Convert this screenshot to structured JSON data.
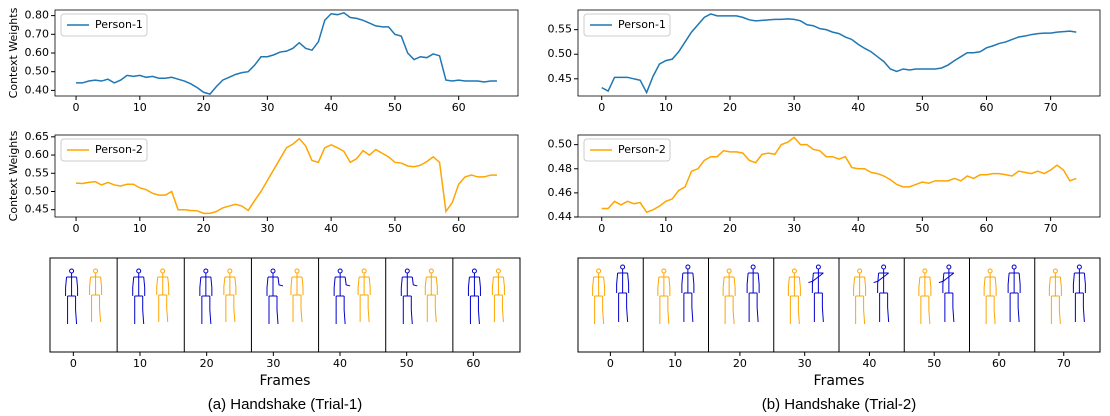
{
  "chart_data": [
    {
      "type": "line",
      "ylabel": "Context Weights",
      "legend": "upper left",
      "x": [
        0,
        1,
        2,
        3,
        4,
        5,
        6,
        7,
        8,
        9,
        10,
        11,
        12,
        13,
        14,
        15,
        16,
        17,
        18,
        19,
        20,
        21,
        22,
        23,
        24,
        25,
        26,
        27,
        28,
        29,
        30,
        31,
        32,
        33,
        34,
        35,
        36,
        37,
        38,
        39,
        40,
        41,
        42,
        43,
        44,
        45,
        46,
        47,
        48,
        49,
        50,
        51,
        52,
        53,
        54,
        55,
        56,
        57,
        58,
        59,
        60,
        61,
        62,
        63,
        64,
        65,
        66
      ],
      "series": [
        {
          "name": "Person-1",
          "color": "#1f77b4",
          "values": [
            0.44,
            0.44,
            0.45,
            0.455,
            0.45,
            0.46,
            0.44,
            0.455,
            0.48,
            0.475,
            0.48,
            0.47,
            0.475,
            0.465,
            0.465,
            0.47,
            0.46,
            0.45,
            0.435,
            0.415,
            0.39,
            0.38,
            0.42,
            0.455,
            0.47,
            0.485,
            0.495,
            0.5,
            0.535,
            0.58,
            0.58,
            0.59,
            0.605,
            0.61,
            0.625,
            0.655,
            0.625,
            0.615,
            0.66,
            0.775,
            0.81,
            0.805,
            0.815,
            0.79,
            0.785,
            0.775,
            0.76,
            0.745,
            0.74,
            0.74,
            0.7,
            0.69,
            0.6,
            0.565,
            0.58,
            0.575,
            0.595,
            0.585,
            0.455,
            0.45,
            0.455,
            0.45,
            0.45,
            0.45,
            0.445,
            0.45,
            0.45
          ]
        }
      ],
      "xlim": [
        -3.3,
        69.3
      ],
      "ylim": [
        0.37,
        0.83
      ],
      "xticks": [
        0,
        10,
        20,
        30,
        40,
        50,
        60
      ],
      "yticks": [
        {
          "value": 0.4,
          "label": "0.40"
        },
        {
          "value": 0.5,
          "label": "0.50"
        },
        {
          "value": 0.6,
          "label": "0.60"
        },
        {
          "value": 0.7,
          "label": "0.70"
        },
        {
          "value": 0.8,
          "label": "0.80"
        }
      ]
    },
    {
      "type": "line",
      "ylabel": "Context Weights",
      "legend": "upper left",
      "x": [
        0,
        1,
        2,
        3,
        4,
        5,
        6,
        7,
        8,
        9,
        10,
        11,
        12,
        13,
        14,
        15,
        16,
        17,
        18,
        19,
        20,
        21,
        22,
        23,
        24,
        25,
        26,
        27,
        28,
        29,
        30,
        31,
        32,
        33,
        34,
        35,
        36,
        37,
        38,
        39,
        40,
        41,
        42,
        43,
        44,
        45,
        46,
        47,
        48,
        49,
        50,
        51,
        52,
        53,
        54,
        55,
        56,
        57,
        58,
        59,
        60,
        61,
        62,
        63,
        64,
        65,
        66
      ],
      "series": [
        {
          "name": "Person-2",
          "color": "#ffa500",
          "values": [
            0.523,
            0.522,
            0.525,
            0.527,
            0.518,
            0.525,
            0.518,
            0.515,
            0.52,
            0.52,
            0.51,
            0.505,
            0.495,
            0.49,
            0.49,
            0.5,
            0.45,
            0.45,
            0.448,
            0.447,
            0.44,
            0.44,
            0.445,
            0.455,
            0.46,
            0.465,
            0.46,
            0.448,
            0.475,
            0.5,
            0.53,
            0.56,
            0.59,
            0.62,
            0.63,
            0.645,
            0.625,
            0.585,
            0.58,
            0.62,
            0.628,
            0.62,
            0.61,
            0.58,
            0.59,
            0.612,
            0.6,
            0.615,
            0.605,
            0.595,
            0.58,
            0.578,
            0.57,
            0.568,
            0.572,
            0.582,
            0.595,
            0.58,
            0.445,
            0.47,
            0.52,
            0.54,
            0.545,
            0.54,
            0.54,
            0.545,
            0.545
          ]
        }
      ],
      "xlim": [
        -3.3,
        69.3
      ],
      "ylim": [
        0.43,
        0.655
      ],
      "xticks": [
        0,
        10,
        20,
        30,
        40,
        50,
        60
      ],
      "yticks": [
        {
          "value": 0.45,
          "label": "0.45"
        },
        {
          "value": 0.5,
          "label": "0.50"
        },
        {
          "value": 0.55,
          "label": "0.55"
        },
        {
          "value": 0.6,
          "label": "0.60"
        },
        {
          "value": 0.65,
          "label": "0.65"
        }
      ]
    },
    {
      "type": "line",
      "legend": "upper left",
      "x": [
        0,
        1,
        2,
        3,
        4,
        5,
        6,
        7,
        8,
        9,
        10,
        11,
        12,
        13,
        14,
        15,
        16,
        17,
        18,
        19,
        20,
        21,
        22,
        23,
        24,
        25,
        26,
        27,
        28,
        29,
        30,
        31,
        32,
        33,
        34,
        35,
        36,
        37,
        38,
        39,
        40,
        41,
        42,
        43,
        44,
        45,
        46,
        47,
        48,
        49,
        50,
        51,
        52,
        53,
        54,
        55,
        56,
        57,
        58,
        59,
        60,
        61,
        62,
        63,
        64,
        65,
        66,
        67,
        68,
        69,
        70,
        71,
        72,
        73,
        74
      ],
      "series": [
        {
          "name": "Person-1",
          "color": "#1f77b4",
          "values": [
            0.432,
            0.425,
            0.453,
            0.453,
            0.453,
            0.45,
            0.447,
            0.422,
            0.455,
            0.48,
            0.487,
            0.49,
            0.505,
            0.525,
            0.545,
            0.56,
            0.575,
            0.582,
            0.578,
            0.578,
            0.578,
            0.578,
            0.575,
            0.57,
            0.568,
            0.569,
            0.57,
            0.571,
            0.571,
            0.572,
            0.571,
            0.568,
            0.56,
            0.558,
            0.552,
            0.55,
            0.545,
            0.542,
            0.535,
            0.53,
            0.52,
            0.512,
            0.505,
            0.495,
            0.485,
            0.47,
            0.465,
            0.47,
            0.468,
            0.47,
            0.47,
            0.47,
            0.47,
            0.472,
            0.478,
            0.487,
            0.495,
            0.503,
            0.503,
            0.505,
            0.513,
            0.517,
            0.522,
            0.525,
            0.53,
            0.535,
            0.537,
            0.54,
            0.542,
            0.543,
            0.543,
            0.545,
            0.546,
            0.547,
            0.545
          ]
        }
      ],
      "xlim": [
        -3.7,
        77.7
      ],
      "ylim": [
        0.415,
        0.59
      ],
      "xticks": [
        0,
        10,
        20,
        30,
        40,
        50,
        60,
        70
      ],
      "yticks": [
        {
          "value": 0.45,
          "label": "0.45"
        },
        {
          "value": 0.5,
          "label": "0.50"
        },
        {
          "value": 0.55,
          "label": "0.55"
        }
      ]
    },
    {
      "type": "line",
      "legend": "upper left",
      "x": [
        0,
        1,
        2,
        3,
        4,
        5,
        6,
        7,
        8,
        9,
        10,
        11,
        12,
        13,
        14,
        15,
        16,
        17,
        18,
        19,
        20,
        21,
        22,
        23,
        24,
        25,
        26,
        27,
        28,
        29,
        30,
        31,
        32,
        33,
        34,
        35,
        36,
        37,
        38,
        39,
        40,
        41,
        42,
        43,
        44,
        45,
        46,
        47,
        48,
        49,
        50,
        51,
        52,
        53,
        54,
        55,
        56,
        57,
        58,
        59,
        60,
        61,
        62,
        63,
        64,
        65,
        66,
        67,
        68,
        69,
        70,
        71,
        72,
        73,
        74
      ],
      "series": [
        {
          "name": "Person-2",
          "color": "#ffa500",
          "values": [
            0.447,
            0.447,
            0.453,
            0.45,
            0.453,
            0.451,
            0.452,
            0.444,
            0.446,
            0.449,
            0.453,
            0.455,
            0.462,
            0.465,
            0.478,
            0.48,
            0.487,
            0.49,
            0.49,
            0.495,
            0.494,
            0.494,
            0.493,
            0.487,
            0.485,
            0.492,
            0.493,
            0.492,
            0.5,
            0.502,
            0.506,
            0.5,
            0.5,
            0.496,
            0.495,
            0.49,
            0.49,
            0.488,
            0.49,
            0.481,
            0.48,
            0.48,
            0.477,
            0.476,
            0.474,
            0.471,
            0.467,
            0.465,
            0.465,
            0.467,
            0.469,
            0.468,
            0.47,
            0.47,
            0.47,
            0.472,
            0.47,
            0.474,
            0.472,
            0.475,
            0.475,
            0.476,
            0.476,
            0.475,
            0.474,
            0.478,
            0.477,
            0.476,
            0.478,
            0.476,
            0.479,
            0.483,
            0.479,
            0.47,
            0.472
          ]
        }
      ],
      "xlim": [
        -3.7,
        77.7
      ],
      "ylim": [
        0.44,
        0.508
      ],
      "xticks": [
        0,
        10,
        20,
        30,
        40,
        50,
        60,
        70
      ],
      "yticks": [
        {
          "value": 0.44,
          "label": "0.44"
        },
        {
          "value": 0.46,
          "label": "0.46"
        },
        {
          "value": 0.48,
          "label": "0.48"
        },
        {
          "value": 0.5,
          "label": "0.50"
        }
      ]
    },
    {
      "type": "frames",
      "xlabel": "Frames",
      "caption": "(a) Handshake (Trial-1)",
      "xlim": [
        -3.5,
        67
      ],
      "xticks": [
        0,
        10,
        20,
        30,
        40,
        50,
        60
      ]
    },
    {
      "type": "frames",
      "xlabel": "Frames",
      "caption": "(b) Handshake (Trial-2)",
      "xlim": [
        -5,
        75.6
      ],
      "xticks": [
        0,
        10,
        20,
        30,
        40,
        50,
        60,
        70
      ]
    }
  ]
}
